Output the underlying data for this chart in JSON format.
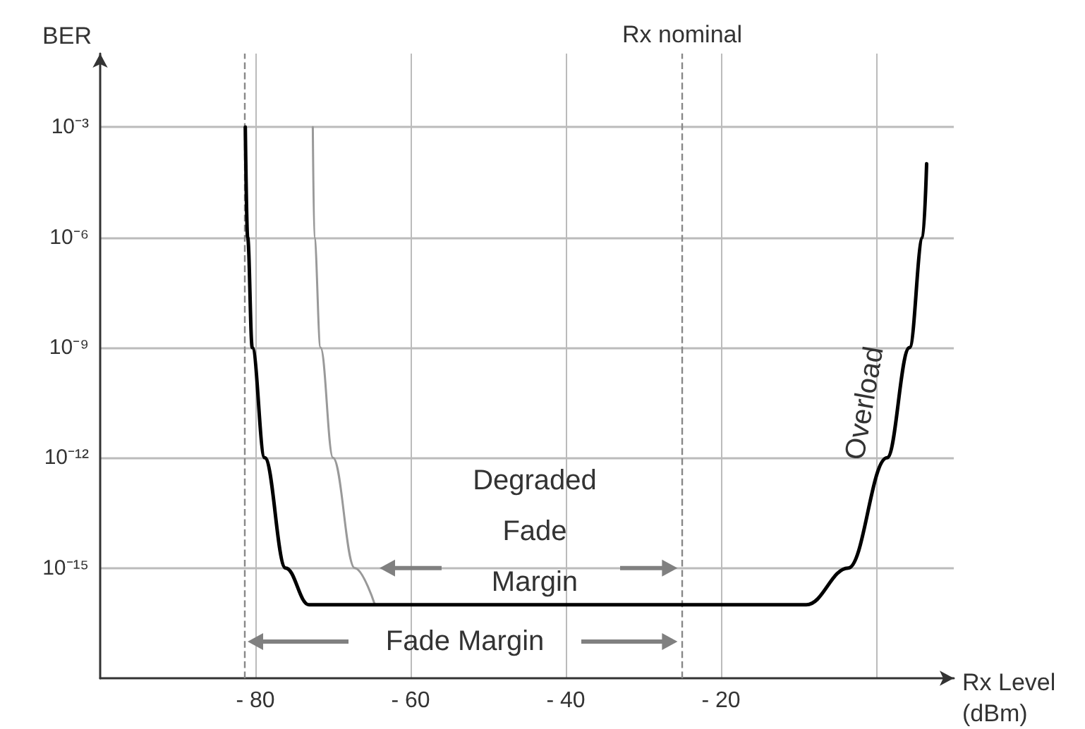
{
  "chart_data": {
    "type": "line",
    "xlabel": "Rx Level\n(dBm)",
    "ylabel": "BER",
    "log": "y",
    "grid": true,
    "marker": "none",
    "line_style": "solid",
    "xlim": [
      -100,
      10
    ],
    "xticks": [
      {
        "value": -80,
        "label": "- 80"
      },
      {
        "value": -60,
        "label": "- 60"
      },
      {
        "value": -40,
        "label": "- 40"
      },
      {
        "value": -20,
        "label": "- 20"
      },
      {
        "value": 0,
        "label": null
      }
    ],
    "ylim": [
      1e-18,
      0.1
    ],
    "yticks": [
      {
        "value": 1e-15,
        "label": "10⁻¹⁵"
      },
      {
        "value": 1e-12,
        "label": "10⁻¹²"
      },
      {
        "value": 1e-09,
        "label": "10⁻⁹"
      },
      {
        "value": 1e-06,
        "label": "10⁻⁶"
      },
      {
        "value": 0.001,
        "label": "10⁻³"
      }
    ],
    "series": [
      {
        "color": "#000000",
        "x": [
          -81.3,
          -81,
          -80.4,
          -78.8,
          -76.1,
          -73.1,
          -9,
          -3.6,
          1.4,
          4.3,
          6,
          6.5
        ],
        "values": [
          0.001,
          1e-06,
          1e-09,
          1e-12,
          1e-15,
          1e-16,
          1e-16,
          1e-15,
          1e-12,
          1e-09,
          1e-06,
          0.0001
        ]
      },
      {
        "color": "#999999",
        "x": [
          -72.6,
          -72.4,
          -71.6,
          -70,
          -67.2,
          -64.6
        ],
        "values": [
          0.001,
          1e-06,
          1e-09,
          1e-12,
          1e-15,
          1e-16
        ]
      }
    ],
    "ref_lines": [
      {
        "axis": "x",
        "value": -81.5,
        "label": null,
        "color": "#888888",
        "line_style": "dashed"
      },
      {
        "axis": "x",
        "value": -25,
        "label": "Rx nominal",
        "color": "#888888",
        "line_style": "dashed"
      }
    ],
    "annotations": [
      "Degraded Fade Margin",
      "Fade Margin",
      "Overload"
    ]
  }
}
